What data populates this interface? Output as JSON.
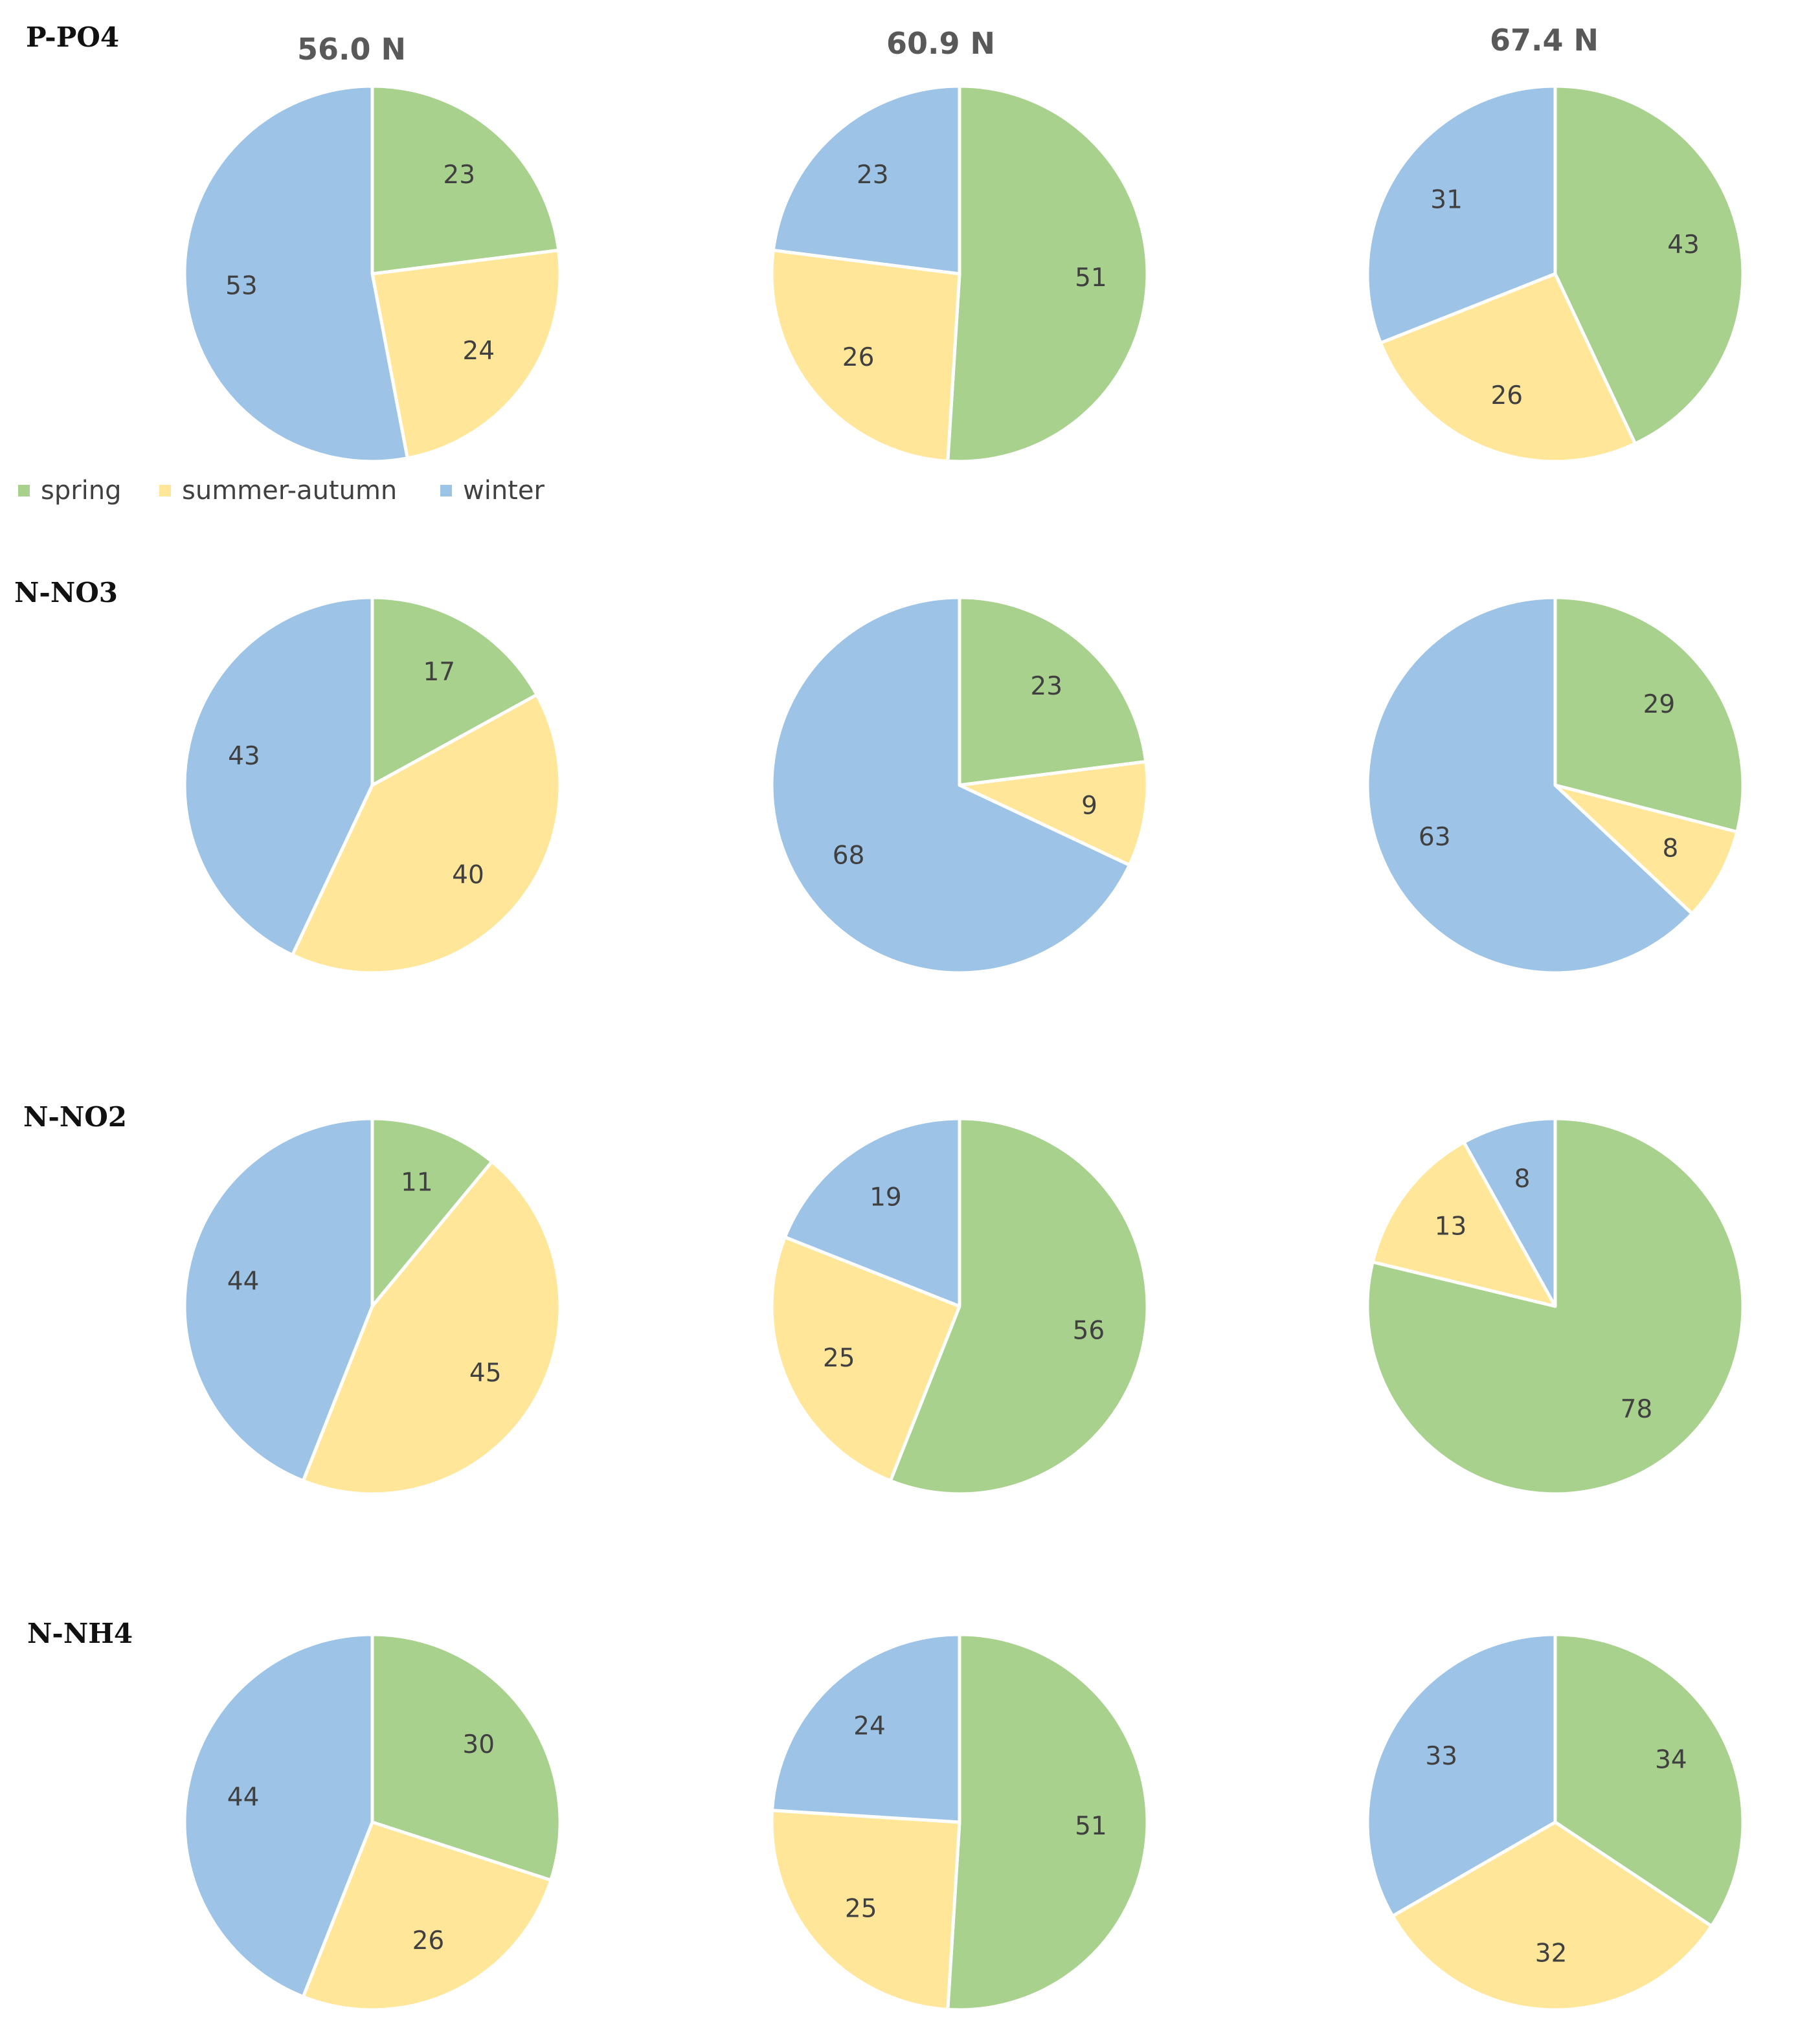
{
  "columns": [
    "56.0 N",
    "60.9 N",
    "67.4 N"
  ],
  "legend": [
    {
      "key": "spring",
      "label": "spring",
      "color": "#a9d18e"
    },
    {
      "key": "summer_autumn",
      "label": "summer-autumn",
      "color": "#ffe699"
    },
    {
      "key": "winter",
      "label": "winter",
      "color": "#9dc3e6"
    }
  ],
  "chart_data": [
    {
      "type": "pie",
      "row": "P-PO4",
      "title": "56.0 N",
      "labels": [
        "spring",
        "summer-autumn",
        "winter"
      ],
      "values": [
        23,
        24,
        53
      ]
    },
    {
      "type": "pie",
      "row": "P-PO4",
      "title": "60.9 N",
      "labels": [
        "spring",
        "summer-autumn",
        "winter"
      ],
      "values": [
        51,
        26,
        23
      ]
    },
    {
      "type": "pie",
      "row": "P-PO4",
      "title": "67.4 N",
      "labels": [
        "spring",
        "summer-autumn",
        "winter"
      ],
      "values": [
        43,
        26,
        31
      ]
    },
    {
      "type": "pie",
      "row": "N-NO3",
      "title": "56.0 N",
      "labels": [
        "spring",
        "summer-autumn",
        "winter"
      ],
      "values": [
        17,
        40,
        43
      ]
    },
    {
      "type": "pie",
      "row": "N-NO3",
      "title": "60.9 N",
      "labels": [
        "spring",
        "summer-autumn",
        "winter"
      ],
      "values": [
        23,
        9,
        68
      ]
    },
    {
      "type": "pie",
      "row": "N-NO3",
      "title": "67.4 N",
      "labels": [
        "spring",
        "summer-autumn",
        "winter"
      ],
      "values": [
        29,
        8,
        63
      ]
    },
    {
      "type": "pie",
      "row": "N-NO2",
      "title": "56.0 N",
      "labels": [
        "spring",
        "summer-autumn",
        "winter"
      ],
      "values": [
        11,
        45,
        44
      ]
    },
    {
      "type": "pie",
      "row": "N-NO2",
      "title": "60.9 N",
      "labels": [
        "spring",
        "summer-autumn",
        "winter"
      ],
      "values": [
        56,
        25,
        19
      ]
    },
    {
      "type": "pie",
      "row": "N-NO2",
      "title": "67.4 N",
      "labels": [
        "spring",
        "summer-autumn",
        "winter"
      ],
      "values": [
        78,
        13,
        8
      ]
    },
    {
      "type": "pie",
      "row": "N-NH4",
      "title": "56.0 N",
      "labels": [
        "spring",
        "summer-autumn",
        "winter"
      ],
      "values": [
        30,
        26,
        44
      ]
    },
    {
      "type": "pie",
      "row": "N-NH4",
      "title": "60.9 N",
      "labels": [
        "spring",
        "summer-autumn",
        "winter"
      ],
      "values": [
        51,
        25,
        24
      ]
    },
    {
      "type": "pie",
      "row": "N-NH4",
      "title": "67.4 N",
      "labels": [
        "spring",
        "summer-autumn",
        "winter"
      ],
      "values": [
        34,
        32,
        33
      ]
    }
  ]
}
